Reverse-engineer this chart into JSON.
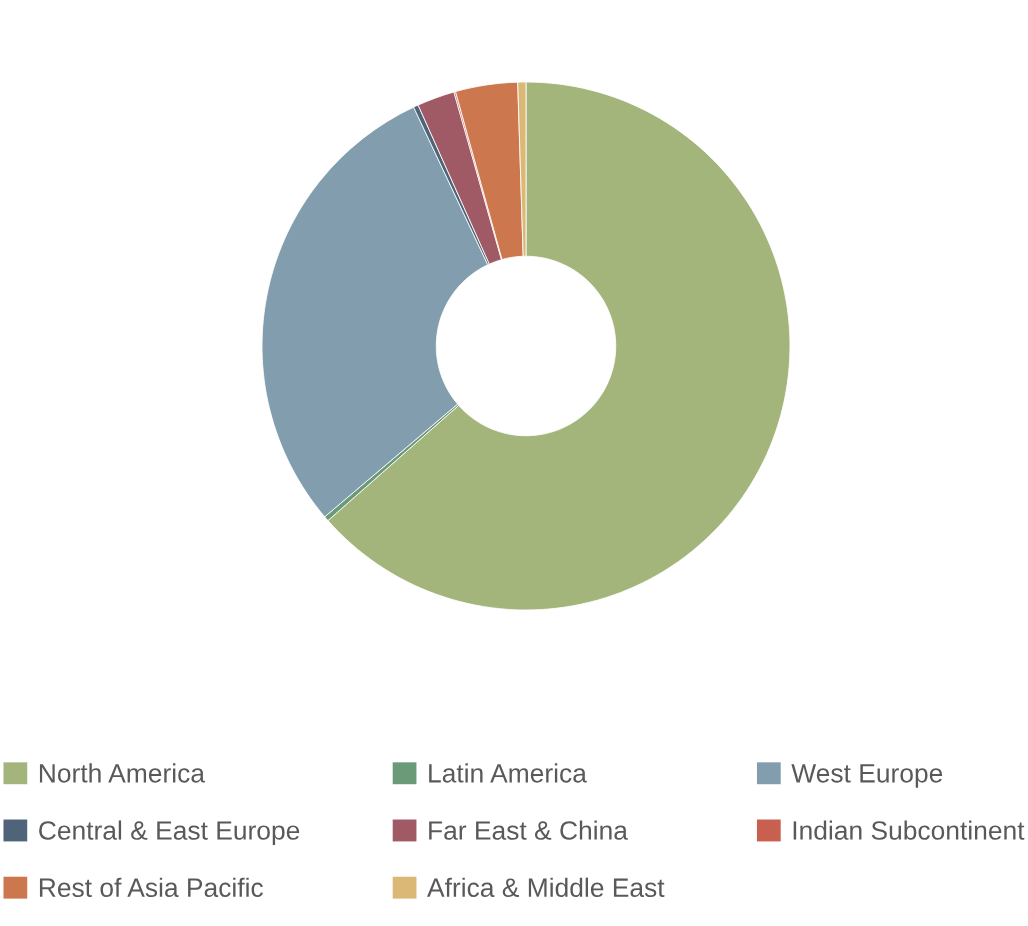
{
  "chart_data": {
    "type": "donut",
    "categories": [
      "North America",
      "Latin America",
      "West Europe",
      "Central & East Europe",
      "Far East & China",
      "Indian Subcontinent",
      "Rest of Asia Pacific",
      "Africa & Middle East"
    ],
    "values": [
      63.5,
      0.3,
      29.2,
      0.3,
      2.3,
      0.1,
      3.8,
      0.5
    ],
    "colors": [
      "#a3b57a",
      "#6a9a78",
      "#819dae",
      "#4f6478",
      "#a05a66",
      "#c9604f",
      "#cc774d",
      "#dcb877"
    ],
    "legend": "bottom"
  }
}
